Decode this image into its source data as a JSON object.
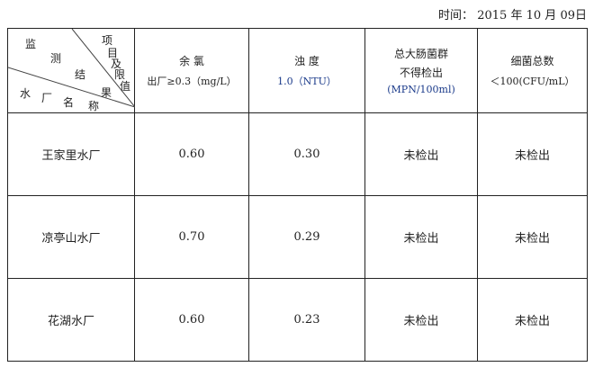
{
  "date": {
    "label": "时间：",
    "year": "2015",
    "year_unit": "年",
    "month": "10",
    "month_unit": "月",
    "day": "09",
    "day_unit": "日"
  },
  "corner_header": {
    "top_left": [
      "监",
      "测",
      "结",
      "果"
    ],
    "top_right": [
      "项",
      "目",
      "及",
      "限",
      "值"
    ],
    "bottom": [
      "水",
      "厂",
      "名",
      "称"
    ]
  },
  "columns": [
    {
      "line1": "余 氯",
      "line2": "出厂≥0.3（mg/L）"
    },
    {
      "line1": "浊 度",
      "line2": "1.0（NTU）"
    },
    {
      "line1": "总大肠菌群",
      "line2": "不得检出",
      "line3": "(MPN/100ml)"
    },
    {
      "line1": "细菌总数",
      "line2": "＜100(CFU/mL）"
    }
  ],
  "rows": [
    {
      "name": "王家里水厂",
      "values": [
        "0.60",
        "0.30",
        "未检出",
        "未检出"
      ]
    },
    {
      "name": "凉亭山水厂",
      "values": [
        "0.70",
        "0.29",
        "未检出",
        "未检出"
      ]
    },
    {
      "name": "花湖水厂",
      "values": [
        "0.60",
        "0.23",
        "未检出",
        "未检出"
      ]
    }
  ]
}
